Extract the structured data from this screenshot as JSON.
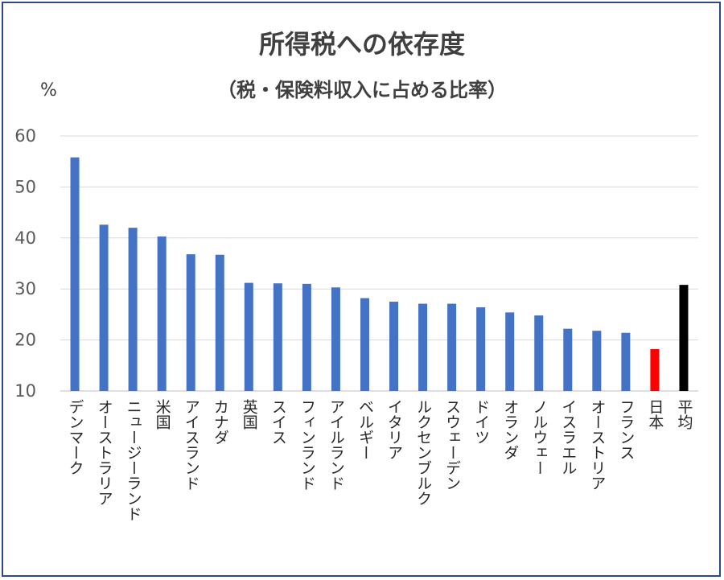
{
  "chart_data": {
    "type": "bar",
    "title": "所得税への依存度",
    "subtitle": "（税・保険料収入に占める比率）",
    "ylabel": "%",
    "ylim": [
      10,
      60
    ],
    "yticks": [
      10,
      20,
      30,
      40,
      50,
      60
    ],
    "grid": true,
    "legend": "none",
    "categories": [
      "デンマーク",
      "オーストラリア",
      "ニュージーランド",
      "米国",
      "アイスランド",
      "カナダ",
      "英国",
      "スイス",
      "フィンランド",
      "アイルランド",
      "ベルギー",
      "イタリア",
      "ルクセンブルク",
      "スウェーデン",
      "ドイツ",
      "オランダ",
      "ノルウェー",
      "イスラエル",
      "オーストリア",
      "フランス",
      "日本",
      "平均"
    ],
    "values": [
      55.8,
      42.6,
      42.0,
      40.3,
      36.8,
      36.7,
      31.2,
      31.1,
      31.0,
      30.3,
      28.2,
      27.5,
      27.1,
      27.1,
      26.4,
      25.4,
      24.8,
      22.2,
      21.8,
      21.4,
      18.2,
      30.8
    ],
    "colors": {
      "default": "#4472c4",
      "日本": "#ff0000",
      "平均": "#000000",
      "grid": "#d9d9d9",
      "frame": "#2e4a86"
    }
  }
}
